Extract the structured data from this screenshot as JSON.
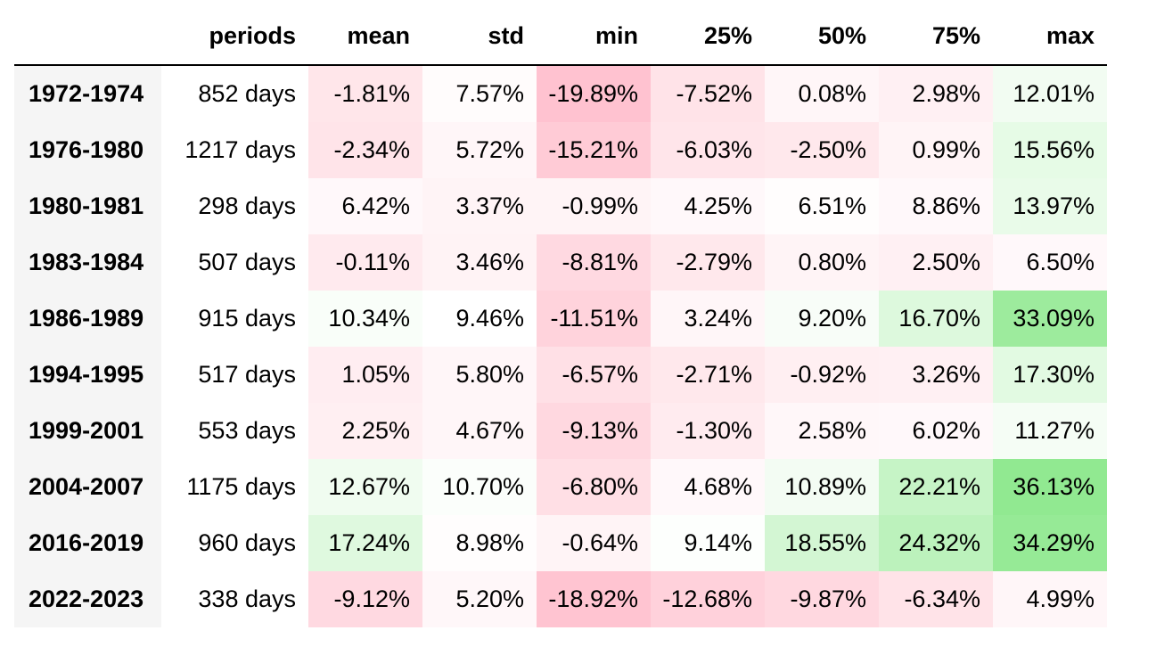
{
  "table": {
    "index_header": "",
    "columns": [
      "periods",
      "mean",
      "std",
      "min",
      "25%",
      "50%",
      "75%",
      "max"
    ],
    "rows": [
      {
        "label": "1972-1974",
        "periods": "852 days",
        "values": [
          "-1.81%",
          "7.57%",
          "-19.89%",
          "-7.52%",
          "0.08%",
          "2.98%",
          "12.01%"
        ],
        "colors": [
          "#ffe6ea",
          "#fffcfc",
          "#ffc2d0",
          "#ffe3e8",
          "#fff6f8",
          "#fff0f3",
          "#f2fcf2"
        ]
      },
      {
        "label": "1976-1980",
        "periods": "1217 days",
        "values": [
          "-2.34%",
          "5.72%",
          "-15.21%",
          "-6.03%",
          "-2.50%",
          "0.99%",
          "15.56%"
        ],
        "colors": [
          "#ffe4e9",
          "#fff6f8",
          "#ffcbd6",
          "#ffe5ea",
          "#ffe8ec",
          "#fff4f6",
          "#e6fbe6"
        ]
      },
      {
        "label": "1980-1981",
        "periods": "298 days",
        "values": [
          "6.42%",
          "3.37%",
          "-0.99%",
          "4.25%",
          "6.51%",
          "8.86%",
          "13.97%"
        ],
        "colors": [
          "#fff8fa",
          "#fff4f6",
          "#fff4f6",
          "#fff8fa",
          "#fffdfd",
          "#fff8fa",
          "#e9fbe9"
        ]
      },
      {
        "label": "1983-1984",
        "periods": "507 days",
        "values": [
          "-0.11%",
          "3.46%",
          "-8.81%",
          "-2.79%",
          "0.80%",
          "2.50%",
          "6.50%"
        ],
        "colors": [
          "#ffeaee",
          "#fff3f5",
          "#ffd9e1",
          "#ffe8ec",
          "#fff4f6",
          "#fff0f3",
          "#fff8fa"
        ]
      },
      {
        "label": "1986-1989",
        "periods": "915 days",
        "values": [
          "10.34%",
          "9.46%",
          "-11.51%",
          "3.24%",
          "9.20%",
          "16.70%",
          "33.09%"
        ],
        "colors": [
          "#f9fef9",
          "#ffffff",
          "#ffd3dc",
          "#fff6f8",
          "#f8fdf8",
          "#ddf9dd",
          "#9deb9d"
        ]
      },
      {
        "label": "1994-1995",
        "periods": "517 days",
        "values": [
          "1.05%",
          "5.80%",
          "-6.57%",
          "-2.71%",
          "-0.92%",
          "3.26%",
          "17.30%"
        ],
        "colors": [
          "#ffedf1",
          "#fff6f8",
          "#ffe0e6",
          "#ffe8ec",
          "#ffeff2",
          "#fff0f3",
          "#e2fae2"
        ]
      },
      {
        "label": "1999-2001",
        "periods": "553 days",
        "values": [
          "2.25%",
          "4.67%",
          "-9.13%",
          "-1.30%",
          "2.58%",
          "6.02%",
          "11.27%"
        ],
        "colors": [
          "#ffeff2",
          "#fff6f8",
          "#ffd8e0",
          "#ffebef",
          "#fff7f9",
          "#fff8fa",
          "#f5fdf5"
        ]
      },
      {
        "label": "2004-2007",
        "periods": "1175 days",
        "values": [
          "12.67%",
          "10.70%",
          "-6.80%",
          "4.68%",
          "10.89%",
          "22.21%",
          "36.13%"
        ],
        "colors": [
          "#f0fcf0",
          "#fbfefb",
          "#ffdfe5",
          "#fff8fa",
          "#f3fcf3",
          "#c6f4c6",
          "#91e991"
        ]
      },
      {
        "label": "2016-2019",
        "periods": "960 days",
        "values": [
          "17.24%",
          "8.98%",
          "-0.64%",
          "9.14%",
          "18.55%",
          "24.32%",
          "34.29%"
        ],
        "colors": [
          "#dff9df",
          "#fffdfd",
          "#fff4f6",
          "#fdfffd",
          "#d3f6d3",
          "#bcf2bc",
          "#96ea96"
        ]
      },
      {
        "label": "2022-2023",
        "periods": "338 days",
        "values": [
          "-9.12%",
          "5.20%",
          "-18.92%",
          "-12.68%",
          "-9.87%",
          "-6.34%",
          "4.99%"
        ],
        "colors": [
          "#ffd9e1",
          "#fff7f9",
          "#ffc4d1",
          "#ffd1db",
          "#ffd8e0",
          "#ffe3e8",
          "#fff6f8"
        ]
      }
    ]
  }
}
